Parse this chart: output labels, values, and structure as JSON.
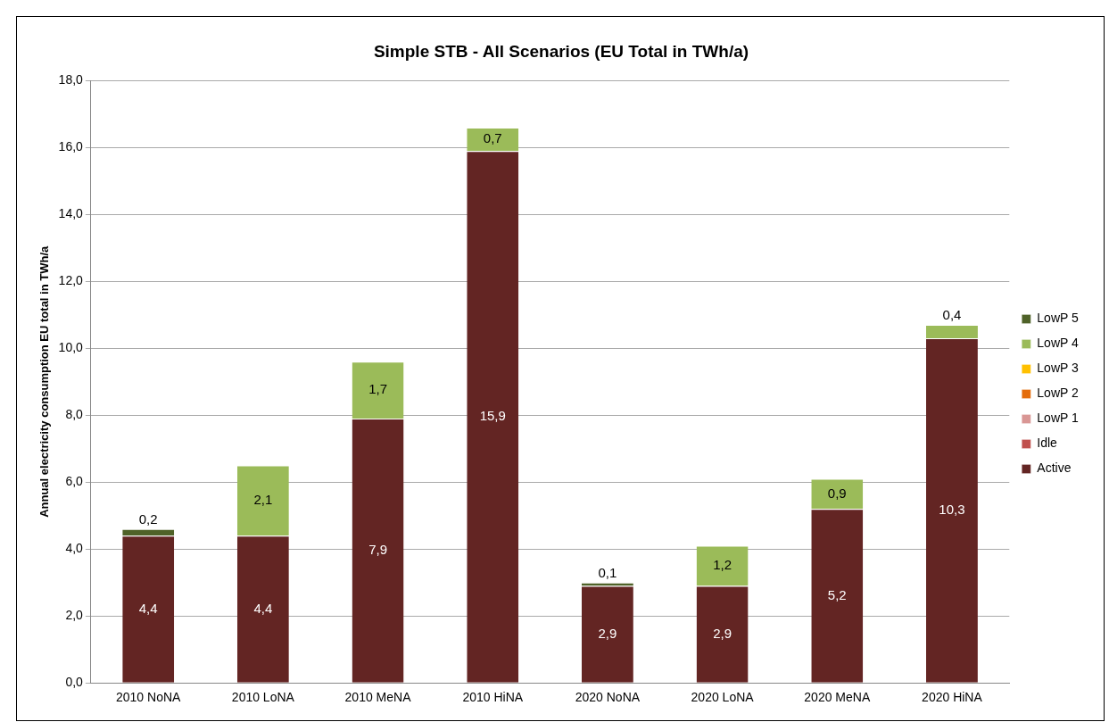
{
  "chart_data": {
    "type": "bar",
    "title": "Simple STB - All Scenarios (EU Total in TWh/a)",
    "ylabel": "Annual electricity consumption EU total in TWh/a",
    "stacked": true,
    "legend": "right",
    "grid": "y",
    "categories": [
      "2010 NoNA",
      "2010 LoNA",
      "2010 MeNA",
      "2010 HiNA",
      "2020 NoNA",
      "2020 LoNA",
      "2020 MeNA",
      "2020 HiNA"
    ],
    "ylim": [
      0,
      18
    ],
    "yticks": [
      {
        "value": 0,
        "label": "0,0"
      },
      {
        "value": 2,
        "label": "2,0"
      },
      {
        "value": 4,
        "label": "4,0"
      },
      {
        "value": 6,
        "label": "6,0"
      },
      {
        "value": 8,
        "label": "8,0"
      },
      {
        "value": 10,
        "label": "10,0"
      },
      {
        "value": 12,
        "label": "12,0"
      },
      {
        "value": 14,
        "label": "14,0"
      },
      {
        "value": 16,
        "label": "16,0"
      },
      {
        "value": 18,
        "label": "18,0"
      }
    ],
    "series": [
      {
        "name": "Active",
        "color": "#632523",
        "values": [
          4.4,
          4.4,
          7.9,
          15.9,
          2.9,
          2.9,
          5.2,
          10.3
        ],
        "value_labels": [
          "4,4",
          "4,4",
          "7,9",
          "15,9",
          "2,9",
          "2,9",
          "5,2",
          "10,3"
        ]
      },
      {
        "name": "Idle",
        "color": "#c0504d",
        "values": [
          0,
          0,
          0,
          0,
          0,
          0,
          0,
          0
        ]
      },
      {
        "name": "LowP 1",
        "color": "#d99694",
        "values": [
          0,
          0,
          0,
          0,
          0,
          0,
          0,
          0
        ]
      },
      {
        "name": "LowP 2",
        "color": "#e46c0a",
        "values": [
          0,
          0,
          0,
          0,
          0,
          0,
          0,
          0
        ]
      },
      {
        "name": "LowP 3",
        "color": "#ffc000",
        "values": [
          0,
          0,
          0,
          0,
          0,
          0,
          0,
          0
        ]
      },
      {
        "name": "LowP 4",
        "color": "#9bbb59",
        "values": [
          0,
          2.1,
          1.7,
          0.7,
          0,
          1.2,
          0.9,
          0.4
        ],
        "value_labels": [
          null,
          "2,1",
          "1,7",
          "0,7",
          null,
          "1,2",
          "0,9",
          "0,4"
        ]
      },
      {
        "name": "LowP 5",
        "color": "#4f6228",
        "values": [
          0.2,
          0,
          0,
          0,
          0.1,
          0,
          0,
          0
        ],
        "value_labels": [
          "0,2",
          null,
          null,
          null,
          "0,1",
          null,
          null,
          null
        ]
      }
    ]
  }
}
